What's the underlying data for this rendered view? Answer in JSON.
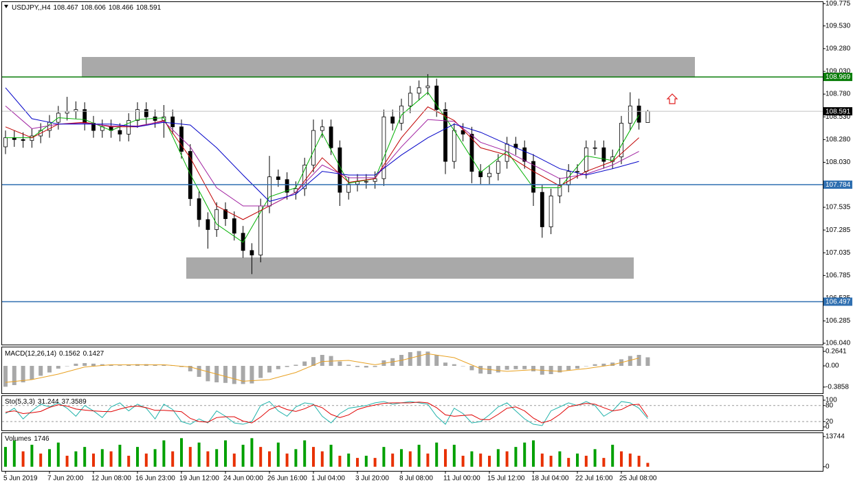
{
  "chart_data": [
    {
      "type": "candlestick",
      "title": "USDJPY,,H4",
      "categories": [
        "5 Jun 2019",
        null,
        null,
        null,
        null,
        "7 Jun 20:00",
        null,
        null,
        null,
        null,
        "12 Jun 08:00",
        null,
        null,
        null,
        null,
        "16 Jun 23:00",
        null,
        null,
        null,
        null,
        "19 Jun 12:00",
        null,
        null,
        null,
        null,
        "24 Jun 00:00",
        null,
        null,
        null,
        null,
        "26 Jun 16:00",
        null,
        null,
        null,
        null,
        "1 Jul 04:00",
        null,
        null,
        null,
        null,
        "3 Jul 20:00",
        null,
        null,
        null,
        null,
        "8 Jul 08:00",
        null,
        null,
        null,
        null,
        "11 Jul 00:00",
        null,
        null,
        null,
        null,
        "15 Jul 12:00",
        null,
        null,
        null,
        null,
        "18 Jul 04:00",
        null,
        null,
        null,
        null,
        "22 Jul 16:00",
        null,
        null,
        null,
        null,
        "25 Jul 08:00",
        null,
        null,
        null
      ],
      "open": [
        108.2,
        108.3,
        108.28,
        108.27,
        108.32,
        108.38,
        108.47,
        108.57,
        108.59,
        108.61,
        108.46,
        108.38,
        108.42,
        108.38,
        108.34,
        108.49,
        108.61,
        108.53,
        108.49,
        108.53,
        108.42,
        108.15,
        107.63,
        107.4,
        107.29,
        107.51,
        107.41,
        107.25,
        107.06,
        107.01,
        107.55,
        107.87,
        107.84,
        107.7,
        107.74,
        108.0,
        108.38,
        108.42,
        108.19,
        107.7,
        107.79,
        107.82,
        107.82,
        107.85,
        108.53,
        108.46,
        108.65,
        108.79,
        108.85,
        108.87,
        108.61,
        108.04,
        108.38,
        108.34,
        107.93,
        107.87,
        107.91,
        108.04,
        108.23,
        108.19,
        108.04,
        107.7,
        107.32,
        107.66,
        107.78,
        107.93,
        107.93,
        108.19,
        108.19,
        108.04,
        108.09,
        108.46,
        108.65,
        108.467
      ],
      "high": [
        108.38,
        108.38,
        108.36,
        108.4,
        108.46,
        108.55,
        108.65,
        108.75,
        108.7,
        108.69,
        108.54,
        108.5,
        108.5,
        108.46,
        108.57,
        108.69,
        108.69,
        108.61,
        108.66,
        108.61,
        108.5,
        108.23,
        107.71,
        107.48,
        107.59,
        107.59,
        107.49,
        107.33,
        107.14,
        107.63,
        108.1,
        107.95,
        107.92,
        107.82,
        108.08,
        108.5,
        108.5,
        108.5,
        108.27,
        107.87,
        107.9,
        107.9,
        107.93,
        108.61,
        108.61,
        108.73,
        108.87,
        108.93,
        109.0,
        108.95,
        108.69,
        108.46,
        108.46,
        108.42,
        108.01,
        107.99,
        108.12,
        108.31,
        108.31,
        108.27,
        108.12,
        107.78,
        107.74,
        107.86,
        108.01,
        108.01,
        108.27,
        108.27,
        108.27,
        108.17,
        108.54,
        108.8,
        108.73,
        108.606
      ],
      "low": [
        108.12,
        108.2,
        108.19,
        108.19,
        108.24,
        108.3,
        108.39,
        108.49,
        108.51,
        108.38,
        108.3,
        108.3,
        108.3,
        108.26,
        108.26,
        108.41,
        108.45,
        108.41,
        108.3,
        108.34,
        108.07,
        107.55,
        107.32,
        107.08,
        107.21,
        107.33,
        107.17,
        106.98,
        106.8,
        106.93,
        107.47,
        107.76,
        107.62,
        107.62,
        107.66,
        107.92,
        108.3,
        108.11,
        107.55,
        107.62,
        107.71,
        107.74,
        107.74,
        107.77,
        108.38,
        108.38,
        108.57,
        108.71,
        108.77,
        108.53,
        107.9,
        107.96,
        108.26,
        107.8,
        107.79,
        107.79,
        107.83,
        107.96,
        108.11,
        107.96,
        107.55,
        107.2,
        107.24,
        107.58,
        107.7,
        107.85,
        107.85,
        108.11,
        107.96,
        107.96,
        108.01,
        108.38,
        108.39,
        108.466
      ],
      "close": [
        108.3,
        108.28,
        108.27,
        108.32,
        108.38,
        108.47,
        108.57,
        108.59,
        108.61,
        108.46,
        108.38,
        108.42,
        108.38,
        108.34,
        108.49,
        108.61,
        108.53,
        108.49,
        108.53,
        108.42,
        108.15,
        107.63,
        107.4,
        107.29,
        107.51,
        107.41,
        107.25,
        107.06,
        107.01,
        107.55,
        107.87,
        107.84,
        107.7,
        107.74,
        108.0,
        108.38,
        108.42,
        108.19,
        107.7,
        107.79,
        107.82,
        107.82,
        107.85,
        108.53,
        108.46,
        108.65,
        108.79,
        108.85,
        108.87,
        108.61,
        108.04,
        108.38,
        108.34,
        107.93,
        107.87,
        107.91,
        108.04,
        108.23,
        108.19,
        108.04,
        107.7,
        107.32,
        107.66,
        107.78,
        107.93,
        107.93,
        108.19,
        108.19,
        108.04,
        108.09,
        108.46,
        108.65,
        108.47,
        108.591
      ],
      "ylim": [
        106.025,
        109.8
      ],
      "yticks": [
        109.775,
        {
          "value": 109.53,
          "label": "109.530"
        },
        {
          "value": 109.28,
          "label": "109.280"
        },
        {
          "value": 109.03,
          "label": "109.030"
        },
        {
          "value": 108.78,
          "label": "108.780"
        },
        {
          "value": 108.53,
          "label": "108.530"
        },
        {
          "value": 108.28,
          "label": "108.280"
        },
        {
          "value": 108.03,
          "label": "108.030"
        },
        107.535,
        107.285,
        107.035,
        106.785,
        106.535,
        106.285,
        {
          "value": 106.04,
          "label": "106.040"
        }
      ],
      "ma_index": [
        0,
        3,
        6,
        9,
        12,
        15,
        18,
        21,
        24,
        27,
        30,
        33,
        36,
        39,
        42,
        45,
        48,
        51,
        54,
        57,
        60,
        63,
        66,
        69,
        72
      ],
      "ma": [
        {
          "color": "#00b000",
          "values": [
            108.3,
            108.3,
            108.52,
            108.5,
            108.38,
            108.5,
            108.52,
            107.9,
            107.35,
            107.15,
            107.65,
            107.75,
            108.35,
            107.8,
            107.85,
            108.55,
            108.8,
            108.38,
            107.92,
            108.15,
            107.75,
            107.75,
            108.1,
            108.05,
            108.55
          ]
        },
        {
          "color": "#c00000",
          "values": [
            108.42,
            108.3,
            108.45,
            108.47,
            108.42,
            108.42,
            108.49,
            108.08,
            107.55,
            107.4,
            107.55,
            107.7,
            108.08,
            107.81,
            107.85,
            108.3,
            108.64,
            108.49,
            108.19,
            108.11,
            107.93,
            107.77,
            107.93,
            108.04,
            108.3
          ]
        },
        {
          "color": "#a020a0",
          "values": [
            108.65,
            108.4,
            108.45,
            108.46,
            108.43,
            108.43,
            108.48,
            108.2,
            107.75,
            107.55,
            107.55,
            107.7,
            108.0,
            107.86,
            107.86,
            108.2,
            108.5,
            108.48,
            108.25,
            108.15,
            108.0,
            107.85,
            107.9,
            108.0,
            108.15
          ]
        },
        {
          "color": "#0000c8",
          "values": [
            108.85,
            108.51,
            108.45,
            108.45,
            108.45,
            108.42,
            108.47,
            108.44,
            108.19,
            107.89,
            107.6,
            107.68,
            107.93,
            107.89,
            107.89,
            108.11,
            108.3,
            108.45,
            108.36,
            108.23,
            108.11,
            107.96,
            107.89,
            107.96,
            108.04
          ]
        }
      ],
      "levels": [
        {
          "value": 108.969,
          "color": "#0a7d0a"
        },
        {
          "value": 107.784,
          "color": "#2f6fb0"
        },
        {
          "value": 106.497,
          "color": "#2f6fb0"
        }
      ],
      "price_line_color": "#c0c0c0"
    },
    {
      "type": "macd",
      "title": "MACD(12,26,14)",
      "color": "#a8a8a8",
      "values": [
        -0.38,
        -0.35,
        -0.3,
        -0.25,
        -0.18,
        -0.12,
        -0.05,
        0.0,
        0.04,
        0.05,
        0.04,
        0.03,
        0.02,
        0.01,
        0.02,
        0.03,
        0.03,
        0.02,
        0.02,
        0.01,
        -0.02,
        -0.1,
        -0.2,
        -0.28,
        -0.3,
        -0.31,
        -0.33,
        -0.33,
        -0.32,
        -0.22,
        -0.12,
        -0.06,
        -0.02,
        0.02,
        0.08,
        0.16,
        0.2,
        0.18,
        0.08,
        0.02,
        -0.02,
        -0.03,
        -0.02,
        0.1,
        0.14,
        0.2,
        0.25,
        0.27,
        0.26,
        0.2,
        0.06,
        0.03,
        0.0,
        -0.08,
        -0.14,
        -0.15,
        -0.12,
        -0.07,
        -0.06,
        -0.06,
        -0.1,
        -0.16,
        -0.15,
        -0.12,
        -0.08,
        -0.05,
        0.0,
        0.03,
        0.04,
        0.06,
        0.12,
        0.18,
        0.2,
        0.1562
      ],
      "signal": {
        "color": "#e8a020",
        "values": [
          -0.3,
          -0.25,
          -0.15,
          -0.02,
          0.02,
          0.02,
          0.02,
          -0.02,
          -0.15,
          -0.28,
          -0.25,
          -0.12,
          0.08,
          0.1,
          0.02,
          0.1,
          0.22,
          0.15,
          -0.05,
          -0.1,
          -0.07,
          -0.1,
          -0.05,
          0.02,
          0.1427
        ]
      },
      "ylim": [
        -0.5,
        0.35
      ],
      "yticks": [
        0.2641,
        {
          "value": 0,
          "label": "0.00"
        },
        -0.3858
      ]
    },
    {
      "type": "stochastic",
      "title": "Sto(5,3,3)",
      "series": [
        {
          "color": "#20b2aa",
          "values": [
            50,
            70,
            30,
            60,
            85,
            75,
            90,
            70,
            40,
            80,
            60,
            35,
            75,
            90,
            60,
            85,
            70,
            30,
            85,
            65,
            20,
            10,
            30,
            15,
            60,
            40,
            15,
            10,
            20,
            80,
            95,
            60,
            40,
            75,
            90,
            85,
            40,
            15,
            50,
            70,
            75,
            80,
            90,
            95,
            85,
            90,
            95,
            90,
            85,
            40,
            10,
            70,
            50,
            15,
            20,
            45,
            75,
            90,
            60,
            30,
            10,
            5,
            60,
            75,
            90,
            80,
            95,
            80,
            40,
            60,
            95,
            90,
            70,
            31.244
          ]
        },
        {
          "color": "#e00000",
          "values": [
            55,
            60,
            50,
            53,
            58,
            73,
            83,
            78,
            67,
            63,
            60,
            58,
            57,
            67,
            75,
            78,
            72,
            62,
            62,
            60,
            57,
            32,
            20,
            18,
            35,
            38,
            38,
            22,
            15,
            37,
            65,
            78,
            65,
            58,
            68,
            83,
            72,
            47,
            35,
            45,
            65,
            75,
            82,
            88,
            90,
            90,
            90,
            93,
            90,
            72,
            45,
            40,
            43,
            45,
            28,
            27,
            47,
            70,
            75,
            60,
            33,
            15,
            25,
            47,
            75,
            82,
            88,
            85,
            72,
            60,
            65,
            82,
            85,
            37.3589
          ]
        }
      ],
      "levels": [
        80,
        20
      ],
      "ylim": [
        -13,
        118
      ],
      "yticks": [
        100,
        80,
        20,
        0
      ]
    },
    {
      "type": "volume",
      "title": "Volumes",
      "up_color": "#00a000",
      "down_color": "#e83000",
      "values": [
        9000,
        12000,
        7000,
        10000,
        6000,
        8000,
        11000,
        5000,
        7000,
        9000,
        6000,
        8000,
        7000,
        10000,
        5000,
        9000,
        6000,
        8000,
        12000,
        7000,
        13000,
        9000,
        11000,
        7000,
        8000,
        12000,
        6000,
        10000,
        13000,
        9000,
        7000,
        11000,
        6000,
        8000,
        12000,
        9000,
        7000,
        10000,
        5000,
        6000,
        4000,
        5000,
        4000,
        9000,
        6000,
        8000,
        7000,
        10000,
        6000,
        11000,
        8000,
        10000,
        5000,
        7000,
        6000,
        5000,
        8000,
        7000,
        9000,
        11000,
        12000,
        6000,
        5000,
        7000,
        4000,
        6000,
        5000,
        8000,
        4000,
        10000,
        7000,
        6000,
        5000,
        1746
      ],
      "ylim": [
        -1900,
        15600
      ],
      "yticks": [
        0,
        13744
      ]
    }
  ]
}
